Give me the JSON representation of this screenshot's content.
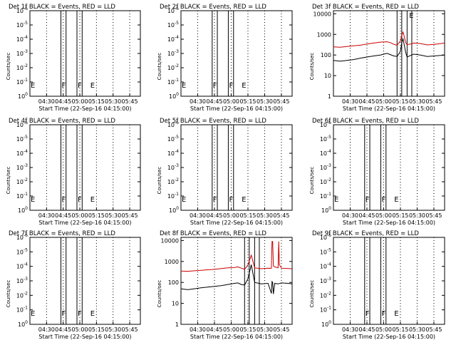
{
  "colors": {
    "events": "#000000",
    "lld": "#cc0000",
    "axis": "#000000",
    "background": "#ffffff"
  },
  "chart_data": [
    {
      "type": "line",
      "title": "Det 1f BLACK = Events, RED = LLD",
      "xlabel": "Start Time (22-Sep-16 04:15:00)",
      "ylabel": "Counts/sec",
      "xticks": [
        "04:30",
        "04:45",
        "05:00",
        "05:15",
        "05:30",
        "05:45"
      ],
      "yticks": [
        "10^0",
        "10^-1",
        "10^-2",
        "10^-3",
        "10^-4",
        "10^-5",
        "10^-6"
      ],
      "markers": [
        {
          "label": "E",
          "x": 0.0
        },
        {
          "label": "F",
          "x": 0.466
        },
        {
          "label": "F",
          "x": 0.707
        },
        {
          "label": "E",
          "x": 0.897
        }
      ],
      "series": []
    },
    {
      "type": "line",
      "title": "Det 2f BLACK = Events, RED = LLD",
      "xlabel": "Start Time (22-Sep-16 04:15:00)",
      "ylabel": "Counts/sec",
      "xticks": [
        "04:30",
        "04:45",
        "05:00",
        "05:15",
        "05:30",
        "05:45"
      ],
      "yticks": [
        "10^0",
        "10^-1",
        "10^-2",
        "10^-3",
        "10^-4",
        "10^-5",
        "10^-6"
      ],
      "markers": [
        {
          "label": "E",
          "x": 0.0
        },
        {
          "label": "F",
          "x": 0.466
        },
        {
          "label": "F",
          "x": 0.707
        },
        {
          "label": "E",
          "x": 0.897
        }
      ],
      "series": []
    },
    {
      "type": "line",
      "title": "Det 3f BLACK = Events, RED = LLD",
      "xlabel": "Start Time (22-Sep-16 04:15:00)",
      "ylabel": "Counts/sec",
      "xticks": [
        "04:30",
        "04:45",
        "05:00",
        "05:15",
        "05:30",
        "05:45"
      ],
      "yticks": [
        "1",
        "10",
        "100",
        "1000",
        "10000"
      ],
      "markers": [
        {
          "label": "E",
          "x": 1.12
        }
      ],
      "series": [
        {
          "name": "LLD",
          "x": [
            0.0,
            0.1,
            0.2,
            0.3,
            0.4,
            0.5,
            0.6,
            0.7,
            0.75,
            0.8,
            0.85,
            0.9,
            0.95,
            1.0,
            1.02,
            1.04,
            1.08,
            1.1,
            1.15,
            1.2,
            1.3,
            1.4,
            1.5,
            1.6,
            1.66
          ],
          "values": [
            250,
            240,
            260,
            280,
            300,
            340,
            380,
            420,
            430,
            440,
            400,
            330,
            300,
            480,
            900,
            1300,
            400,
            320,
            340,
            380,
            360,
            310,
            330,
            360,
            380
          ]
        },
        {
          "name": "Events",
          "x": [
            0.0,
            0.1,
            0.2,
            0.3,
            0.4,
            0.5,
            0.6,
            0.7,
            0.75,
            0.8,
            0.85,
            0.9,
            0.95,
            1.0,
            1.02,
            1.04,
            1.08,
            1.1,
            1.15,
            1.2,
            1.3,
            1.4,
            1.5,
            1.6,
            1.66
          ],
          "values": [
            55,
            50,
            55,
            60,
            70,
            80,
            90,
            100,
            110,
            120,
            105,
            90,
            85,
            150,
            400,
            600,
            130,
            80,
            95,
            110,
            100,
            85,
            90,
            95,
            100
          ]
        }
      ]
    },
    {
      "type": "line",
      "title": "Det 4f BLACK = Events, RED = LLD",
      "xlabel": "Start Time (22-Sep-16 04:15:00)",
      "ylabel": "Counts/sec",
      "xticks": [
        "04:30",
        "04:45",
        "05:00",
        "05:15",
        "05:30",
        "05:45"
      ],
      "yticks": [
        "10^0",
        "10^-1",
        "10^-2",
        "10^-3",
        "10^-4",
        "10^-5",
        "10^-6"
      ],
      "markers": [
        {
          "label": "E",
          "x": 0.0
        },
        {
          "label": "F",
          "x": 0.466
        },
        {
          "label": "F",
          "x": 0.707
        },
        {
          "label": "E",
          "x": 0.897
        }
      ],
      "series": []
    },
    {
      "type": "line",
      "title": "Det 5f BLACK = Events, RED = LLD",
      "xlabel": "Start Time (22-Sep-16 04:15:00)",
      "ylabel": "Counts/sec",
      "xticks": [
        "04:30",
        "04:45",
        "05:00",
        "05:15",
        "05:30",
        "05:45"
      ],
      "yticks": [
        "10^0",
        "10^-1",
        "10^-2",
        "10^-3",
        "10^-4",
        "10^-5",
        "10^-6"
      ],
      "markers": [
        {
          "label": "E",
          "x": 0.0
        },
        {
          "label": "F",
          "x": 0.466
        },
        {
          "label": "F",
          "x": 0.707
        },
        {
          "label": "E",
          "x": 0.897
        }
      ],
      "series": []
    },
    {
      "type": "line",
      "title": "Det 6f BLACK = Events, RED = LLD",
      "xlabel": "Start Time (22-Sep-16 04:15:00)",
      "ylabel": "Counts/sec",
      "xticks": [
        "04:30",
        "04:45",
        "05:00",
        "05:15",
        "05:30",
        "05:45"
      ],
      "yticks": [
        "10^0",
        "10^-1",
        "10^-2",
        "10^-3",
        "10^-4",
        "10^-5",
        "10^-6"
      ],
      "markers": [
        {
          "label": "E",
          "x": 0.0
        },
        {
          "label": "F",
          "x": 0.466
        },
        {
          "label": "F",
          "x": 0.707
        },
        {
          "label": "E",
          "x": 0.897
        }
      ],
      "series": []
    },
    {
      "type": "line",
      "title": "Det 7f BLACK = Events, RED = LLD",
      "xlabel": "Start Time (22-Sep-16 04:15:00)",
      "ylabel": "Counts/sec",
      "xticks": [
        "04:30",
        "04:45",
        "05:00",
        "05:15",
        "05:30",
        "05:45"
      ],
      "yticks": [
        "10^0",
        "10^-1",
        "10^-2",
        "10^-3",
        "10^-4",
        "10^-5",
        "10^-6"
      ],
      "markers": [
        {
          "label": "E",
          "x": 0.0
        },
        {
          "label": "F",
          "x": 0.466
        },
        {
          "label": "F",
          "x": 0.707
        },
        {
          "label": "E",
          "x": 0.897
        }
      ],
      "series": []
    },
    {
      "type": "line",
      "title": "Det 8f BLACK = Events, RED = LLD",
      "xlabel": "Start Time (22-Sep-16 04:15:00)",
      "ylabel": "Counts/sec",
      "xticks": [
        "04:30",
        "04:45",
        "05:00",
        "05:15",
        "05:30",
        "05:45"
      ],
      "yticks": [
        "1",
        "10",
        "100",
        "1000",
        "10000"
      ],
      "markers": [],
      "series": [
        {
          "name": "LLD",
          "x": [
            0.0,
            0.1,
            0.2,
            0.3,
            0.4,
            0.5,
            0.6,
            0.7,
            0.8,
            0.85,
            0.9,
            0.95,
            1.0,
            1.05,
            1.1,
            1.2,
            1.3,
            1.35,
            1.36,
            1.37,
            1.38,
            1.4,
            1.45,
            1.46,
            1.47,
            1.5,
            1.6,
            1.66
          ],
          "values": [
            350,
            340,
            360,
            380,
            400,
            420,
            460,
            500,
            520,
            550,
            480,
            420,
            700,
            2000,
            500,
            450,
            480,
            470,
            9000,
            9000,
            600,
            550,
            500,
            9000,
            700,
            480,
            460,
            450
          ]
        },
        {
          "name": "Events",
          "x": [
            0.0,
            0.1,
            0.2,
            0.3,
            0.4,
            0.5,
            0.6,
            0.7,
            0.8,
            0.85,
            0.9,
            0.95,
            1.0,
            1.05,
            1.1,
            1.2,
            1.3,
            1.35,
            1.36,
            1.37,
            1.38,
            1.4,
            1.45,
            1.5,
            1.6,
            1.66
          ],
          "values": [
            50,
            45,
            50,
            55,
            60,
            65,
            70,
            80,
            90,
            95,
            80,
            75,
            150,
            700,
            100,
            85,
            90,
            30,
            110,
            100,
            28,
            90,
            85,
            95,
            90,
            85
          ]
        }
      ]
    },
    {
      "type": "line",
      "title": "Det 9f BLACK = Events, RED = LLD",
      "xlabel": "Start Time (22-Sep-16 04:15:00)",
      "ylabel": "Counts/sec",
      "xticks": [
        "04:30",
        "04:45",
        "05:00",
        "05:15",
        "05:30",
        "05:45"
      ],
      "yticks": [
        "10^0",
        "10^-1",
        "10^-2",
        "10^-3",
        "10^-4",
        "10^-5",
        "10^-6"
      ],
      "markers": [
        {
          "label": "F",
          "x": 0.466
        },
        {
          "label": "F",
          "x": 0.707
        },
        {
          "label": "E",
          "x": 0.897
        }
      ],
      "series": []
    }
  ]
}
